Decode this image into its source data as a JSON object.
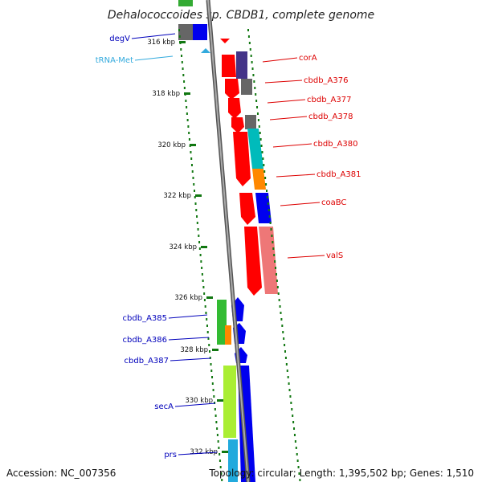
{
  "title": "Dehalococcoides sp. CBDB1, complete genome",
  "footer": {
    "accession": "Accession: NC_007356",
    "topology": "Topology: circular; Length: 1,395,502 bp; Genes: 1,510"
  },
  "colors": {
    "forward": "#ff0000",
    "reverse": "#0000ff",
    "trna": "#33aadd",
    "ticks": "#117711",
    "backbone": "#888888"
  },
  "ticks": [
    {
      "label": "316 kbp"
    },
    {
      "label": "318 kbp"
    },
    {
      "label": "320 kbp"
    },
    {
      "label": "322 kbp"
    },
    {
      "label": "324 kbp"
    },
    {
      "label": "326 kbp"
    },
    {
      "label": "328 kbp"
    },
    {
      "label": "330 kbp"
    },
    {
      "label": "332 kbp"
    }
  ],
  "genes_right": [
    {
      "name": "corA",
      "color": "#dd0000"
    },
    {
      "name": "cbdb_A376",
      "color": "#dd0000"
    },
    {
      "name": "cbdb_A377",
      "color": "#dd0000"
    },
    {
      "name": "cbdb_A378",
      "color": "#dd0000"
    },
    {
      "name": "cbdb_A380",
      "color": "#dd0000"
    },
    {
      "name": "cbdb_A381",
      "color": "#dd0000"
    },
    {
      "name": "coaBC",
      "color": "#dd0000"
    },
    {
      "name": "valS",
      "color": "#dd0000"
    }
  ],
  "genes_left": [
    {
      "name": "degV",
      "color": "#0000bb"
    },
    {
      "name": "tRNA-Met",
      "color": "#33aadd"
    },
    {
      "name": "cbdb_A385",
      "color": "#0000bb"
    },
    {
      "name": "cbdb_A386",
      "color": "#0000bb"
    },
    {
      "name": "cbdb_A387",
      "color": "#0000bb"
    },
    {
      "name": "secA",
      "color": "#0000bb"
    },
    {
      "name": "prs",
      "color": "#0000bb"
    }
  ]
}
